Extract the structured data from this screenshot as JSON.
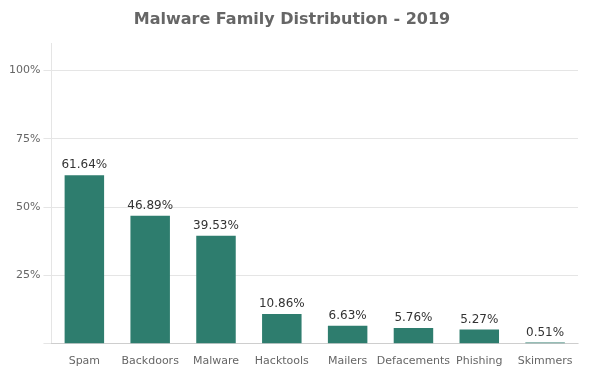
{
  "chart_data": {
    "type": "bar",
    "title": "Malware Family Distribution - 2019",
    "categories": [
      "Spam",
      "Backdoors",
      "Malware",
      "Hacktools",
      "Mailers",
      "Defacements",
      "Phishing",
      "Skimmers"
    ],
    "values": [
      61.64,
      46.89,
      39.53,
      10.86,
      6.63,
      5.76,
      5.27,
      0.51
    ],
    "value_labels": [
      "61.64%",
      "46.89%",
      "39.53%",
      "10.86%",
      "6.63%",
      "5.76%",
      "5.27%",
      "0.51%"
    ],
    "data_labels": true,
    "color": "#2e7d6e",
    "ylim": [
      0,
      110
    ],
    "yticks": [
      {
        "value": 0,
        "label": ""
      },
      {
        "value": 25,
        "label": "25%"
      },
      {
        "value": 50,
        "label": "50%"
      },
      {
        "value": 75,
        "label": "75%"
      },
      {
        "value": 100,
        "label": "100%"
      }
    ],
    "grid": true
  }
}
